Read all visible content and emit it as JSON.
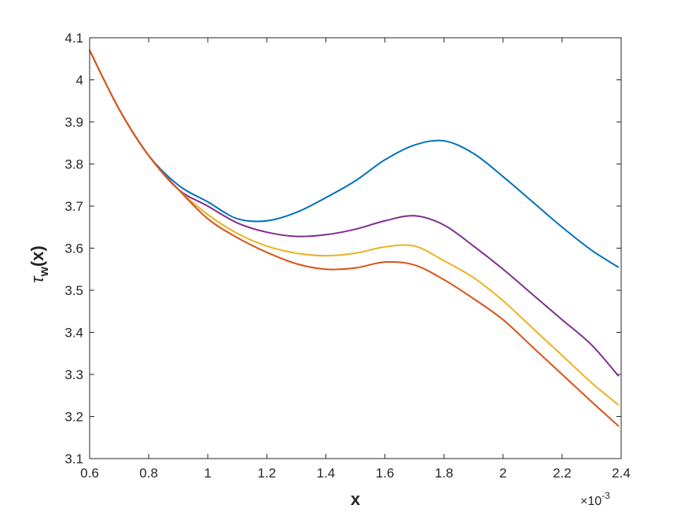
{
  "chart_data": {
    "type": "line",
    "title": "",
    "xlabel": "x",
    "ylabel_main": "τ",
    "ylabel_sub": "w",
    "ylabel_tail": "(x)",
    "x_exponent_base": "×10",
    "x_exponent_power": "-3",
    "xlim": [
      0.6,
      2.4
    ],
    "ylim": [
      3.1,
      4.1
    ],
    "x_ticks": [
      0.6,
      0.8,
      1,
      1.2,
      1.4,
      1.6,
      1.8,
      2,
      2.2,
      2.4
    ],
    "x_tick_labels": [
      "0.6",
      "0.8",
      "1",
      "1.2",
      "1.4",
      "1.6",
      "1.8",
      "2",
      "2.2",
      "2.4"
    ],
    "y_ticks": [
      3.1,
      3.2,
      3.3,
      3.4,
      3.5,
      3.6,
      3.7,
      3.8,
      3.9,
      4,
      4.1
    ],
    "y_tick_labels": [
      "3.1",
      "3.2",
      "3.3",
      "3.4",
      "3.5",
      "3.6",
      "3.7",
      "3.8",
      "3.9",
      "4",
      "4.1"
    ],
    "grid": false,
    "legend": "none",
    "series": [
      {
        "color": "#0072BD",
        "x": [
          0.6,
          0.7,
          0.8,
          0.9,
          1.0,
          1.1,
          1.2,
          1.3,
          1.4,
          1.5,
          1.6,
          1.7,
          1.8,
          1.9,
          2.0,
          2.1,
          2.2,
          2.3,
          2.39
        ],
        "y": [
          4.07,
          3.93,
          3.82,
          3.75,
          3.71,
          3.67,
          3.665,
          3.685,
          3.72,
          3.76,
          3.81,
          3.845,
          3.855,
          3.825,
          3.77,
          3.71,
          3.65,
          3.595,
          3.555
        ]
      },
      {
        "color": "#7E2F8E",
        "x": [
          0.6,
          0.7,
          0.8,
          0.9,
          1.0,
          1.1,
          1.2,
          1.3,
          1.4,
          1.5,
          1.6,
          1.7,
          1.8,
          1.9,
          2.0,
          2.1,
          2.2,
          2.3,
          2.39
        ],
        "y": [
          4.07,
          3.93,
          3.82,
          3.74,
          3.7,
          3.66,
          3.638,
          3.628,
          3.632,
          3.645,
          3.665,
          3.677,
          3.655,
          3.605,
          3.55,
          3.49,
          3.43,
          3.37,
          3.297
        ]
      },
      {
        "color": "#EDB120",
        "x": [
          0.6,
          0.7,
          0.8,
          0.9,
          1.0,
          1.1,
          1.2,
          1.3,
          1.4,
          1.5,
          1.6,
          1.7,
          1.8,
          1.9,
          2.0,
          2.1,
          2.2,
          2.3,
          2.39
        ],
        "y": [
          4.07,
          3.93,
          3.82,
          3.74,
          3.68,
          3.635,
          3.605,
          3.588,
          3.582,
          3.588,
          3.603,
          3.605,
          3.57,
          3.53,
          3.475,
          3.41,
          3.345,
          3.28,
          3.228
        ]
      },
      {
        "color": "#D95319",
        "x": [
          0.6,
          0.7,
          0.8,
          0.9,
          1.0,
          1.1,
          1.2,
          1.3,
          1.4,
          1.5,
          1.6,
          1.7,
          1.8,
          1.9,
          2.0,
          2.1,
          2.2,
          2.3,
          2.39
        ],
        "y": [
          4.07,
          3.93,
          3.82,
          3.74,
          3.67,
          3.625,
          3.59,
          3.563,
          3.55,
          3.553,
          3.567,
          3.56,
          3.525,
          3.48,
          3.43,
          3.365,
          3.3,
          3.235,
          3.178
        ]
      }
    ]
  }
}
